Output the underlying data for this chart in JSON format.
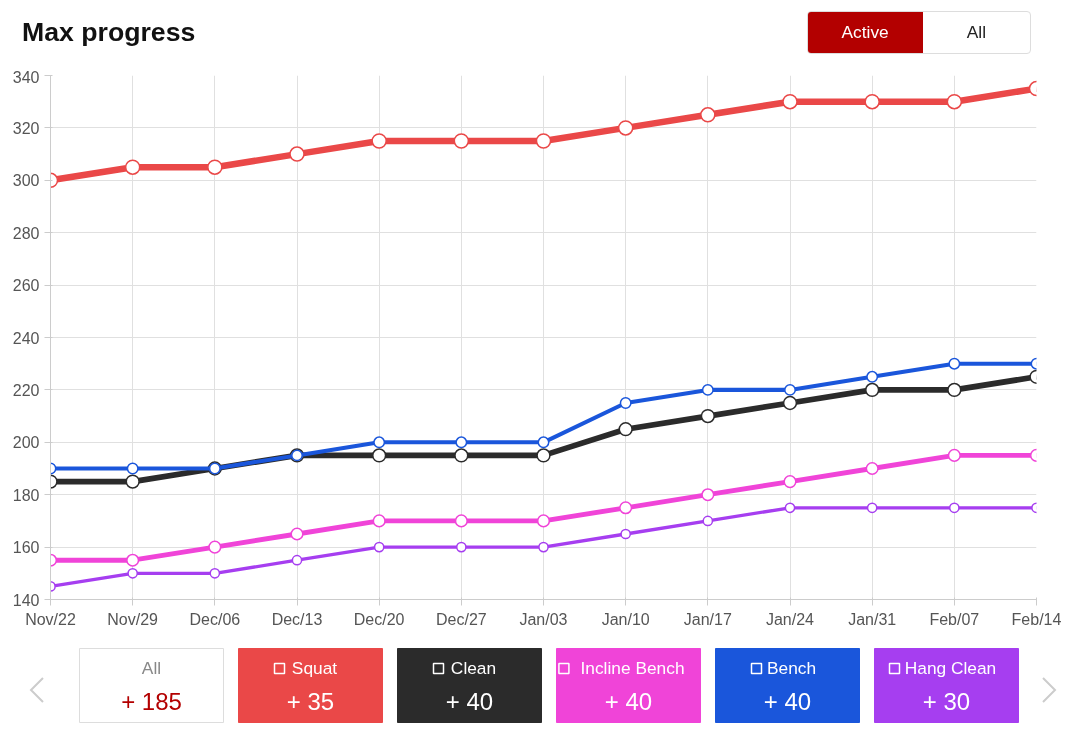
{
  "chart_data": {
    "type": "line",
    "title": "Max progress",
    "categories": [
      "Nov/22",
      "Nov/29",
      "Dec/06",
      "Dec/13",
      "Dec/20",
      "Dec/27",
      "Jan/03",
      "Jan/10",
      "Jan/17",
      "Jan/24",
      "Jan/31",
      "Feb/07",
      "Feb/14"
    ],
    "series": [
      {
        "name": "Squat",
        "color": "#ea4848",
        "values": [
          300,
          305,
          305,
          310,
          315,
          315,
          315,
          320,
          325,
          330,
          330,
          330,
          335
        ]
      },
      {
        "name": "Clean",
        "color": "#2b2b2b",
        "values": [
          185,
          185,
          190,
          195,
          195,
          195,
          195,
          205,
          210,
          215,
          220,
          220,
          225
        ]
      },
      {
        "name": "Incline Bench",
        "color": "#f044d8",
        "values": [
          155,
          155,
          160,
          165,
          170,
          170,
          170,
          175,
          180,
          185,
          190,
          195,
          195
        ]
      },
      {
        "name": "Bench",
        "color": "#1a56db",
        "values": [
          190,
          190,
          190,
          195,
          200,
          200,
          200,
          215,
          220,
          220,
          225,
          230,
          230
        ]
      },
      {
        "name": "Hang Clean",
        "color": "#a63ef0",
        "values": [
          145,
          150,
          150,
          155,
          160,
          160,
          160,
          165,
          170,
          175,
          175,
          175,
          175
        ]
      }
    ],
    "ylim": [
      140,
      340
    ],
    "yticks": [
      140,
      160,
      180,
      200,
      220,
      240,
      260,
      280,
      300,
      320,
      340
    ],
    "grid": true,
    "legend": "bottom",
    "marker": "circle",
    "line_style": "solid",
    "annotations": [
      "Active",
      "All",
      "All",
      "+ 185",
      "+ 35",
      "+ 40",
      "+ 40",
      "+ 40",
      "+ 30"
    ]
  }
}
